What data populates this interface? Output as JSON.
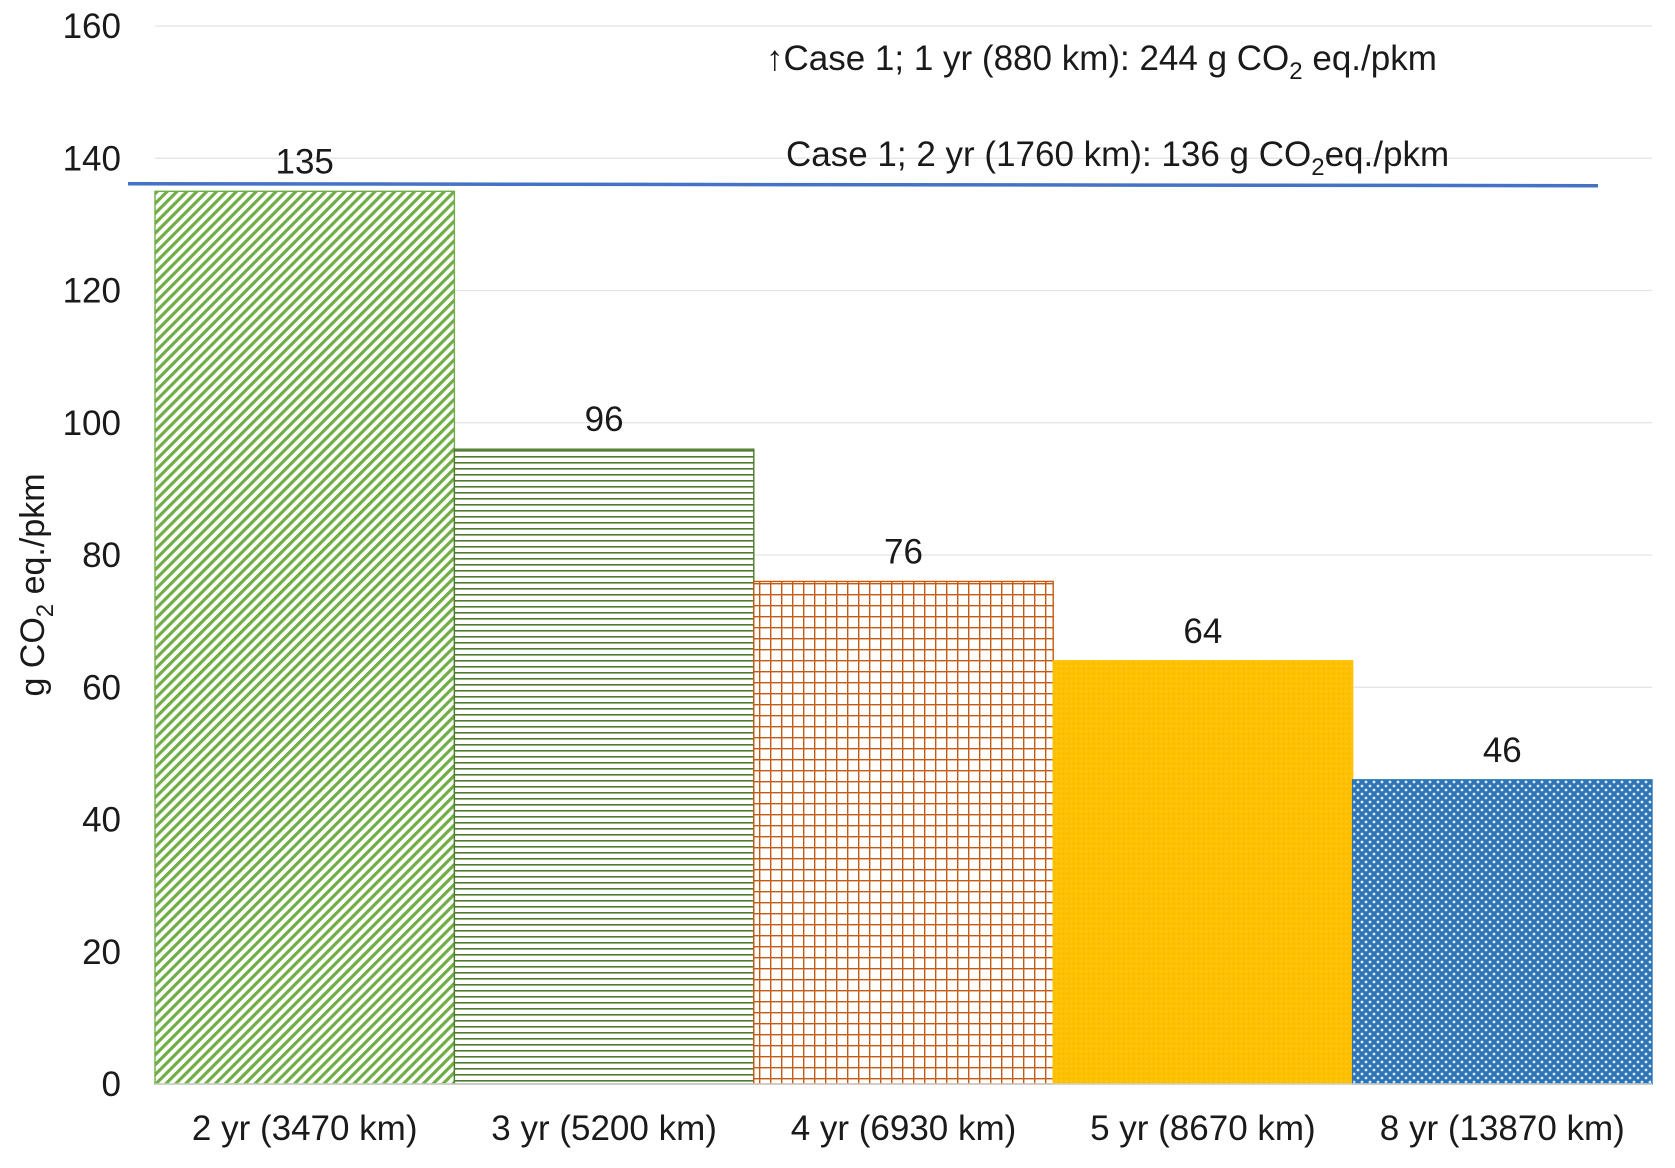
{
  "chart_data": {
    "type": "bar",
    "title": "",
    "xlabel": "",
    "ylabel": {
      "prefix": "g CO",
      "subscript": "2",
      "suffix": " eq./pkm"
    },
    "ylim": [
      0,
      160
    ],
    "yticks": [
      0,
      20,
      40,
      60,
      80,
      100,
      120,
      140,
      160
    ],
    "grid": true,
    "legend": "none",
    "categories": [
      "2 yr (3470 km)",
      "3 yr (5200 km)",
      "4 yr (6930 km)",
      "5 yr (8670 km)",
      "8 yr (13870 km)"
    ],
    "values": [
      135,
      96,
      76,
      64,
      46
    ],
    "bar_styles": [
      {
        "pattern": "diagonal-hatch",
        "color": "#70ad47"
      },
      {
        "pattern": "horizontal-lines",
        "color": "#4e7a2e"
      },
      {
        "pattern": "grid",
        "color": "#c55a11"
      },
      {
        "pattern": "fine-dots",
        "color": "#ffc000"
      },
      {
        "pattern": "checker",
        "color": "#2e75b6"
      }
    ],
    "reference_lines": [
      {
        "value": 136,
        "color": "#4472c4"
      }
    ],
    "annotations": [
      {
        "arrow": "↑",
        "prefix": "Case 1; 1 yr (880 km): 244 g CO",
        "subscript": "2",
        "suffix": " eq./pkm"
      },
      {
        "arrow": "",
        "prefix": "Case 1; 2 yr (1760 km): 136 g CO",
        "subscript": "2",
        "suffix": "eq./pkm"
      }
    ]
  }
}
